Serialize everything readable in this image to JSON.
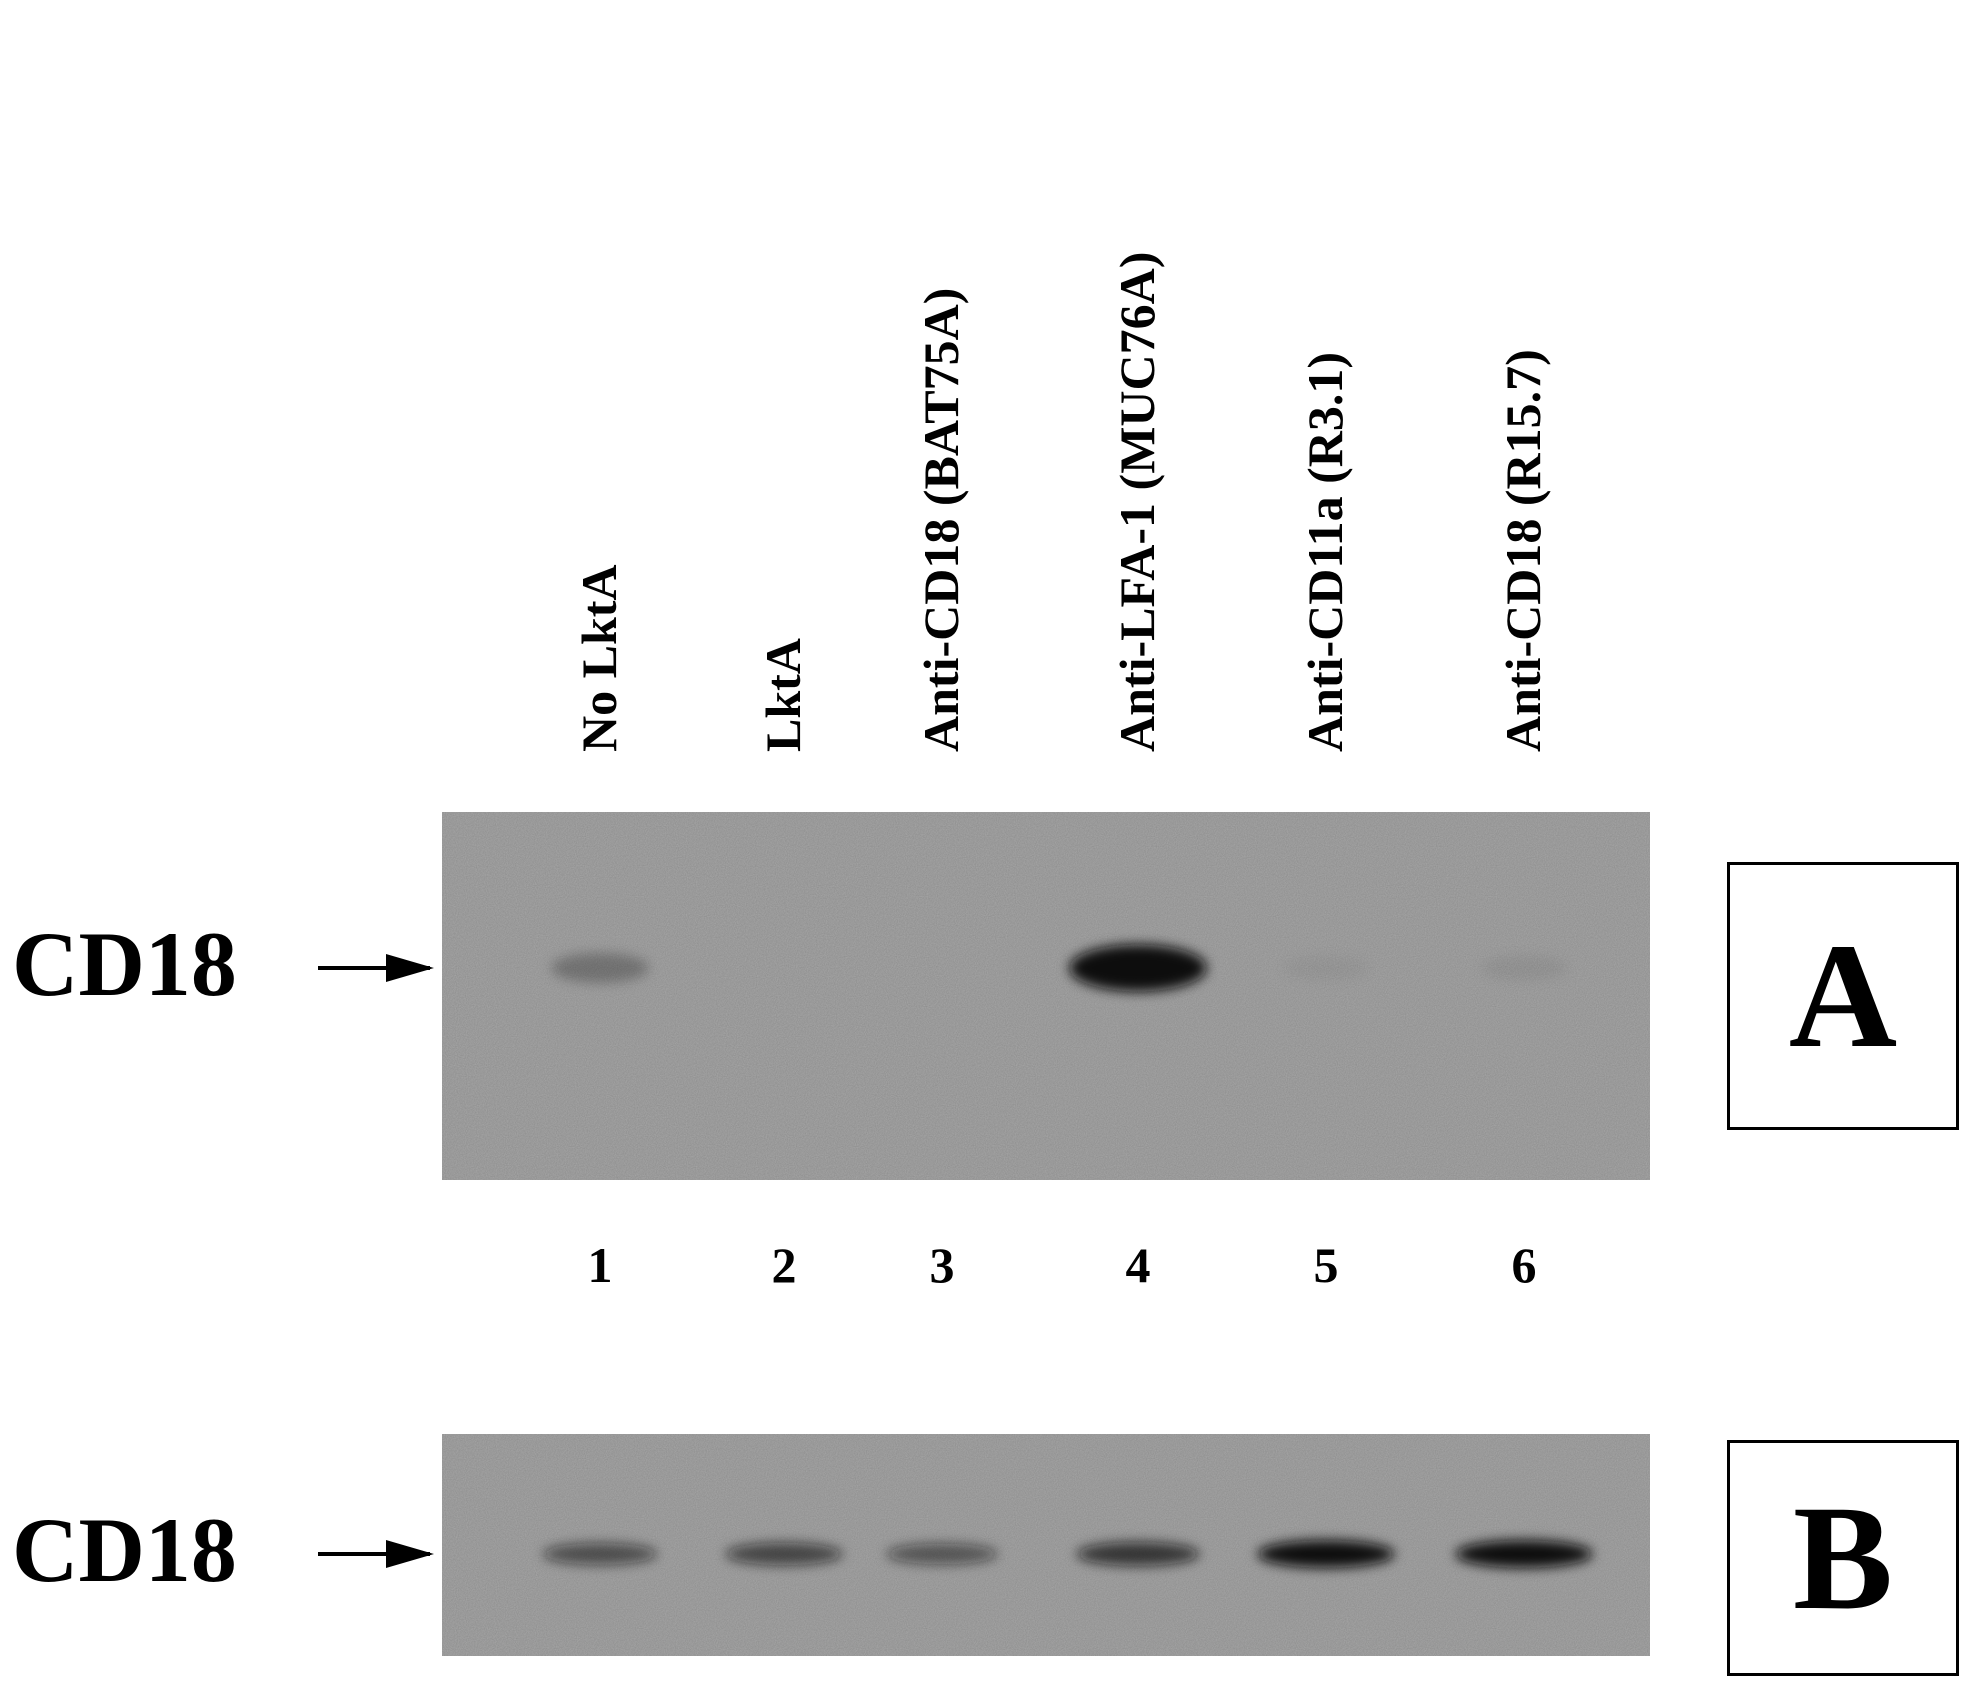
{
  "lanes": [
    {
      "label": "No LktA",
      "number": "1"
    },
    {
      "label": "LktA",
      "number": "2"
    },
    {
      "label": "Anti-CD18 (BAT75A)",
      "number": "3"
    },
    {
      "label": "Anti-LFA-1 (MUC76A)",
      "number": "4"
    },
    {
      "label": "Anti-CD11a (R3.1)",
      "number": "5"
    },
    {
      "label": "Anti-CD18 (R15.7)",
      "number": "6"
    }
  ],
  "panel_a": {
    "marker": "CD18",
    "letter": "A",
    "band_intensity": [
      0.25,
      0.0,
      0.0,
      0.95,
      0.04,
      0.06
    ]
  },
  "panel_b": {
    "marker": "CD18",
    "letter": "B",
    "band_intensity": [
      0.55,
      0.6,
      0.5,
      0.7,
      0.95,
      0.95
    ]
  },
  "colors": {
    "blot_background": "#a9a9a9",
    "band": "#0e0e0e",
    "text": "#000000"
  }
}
